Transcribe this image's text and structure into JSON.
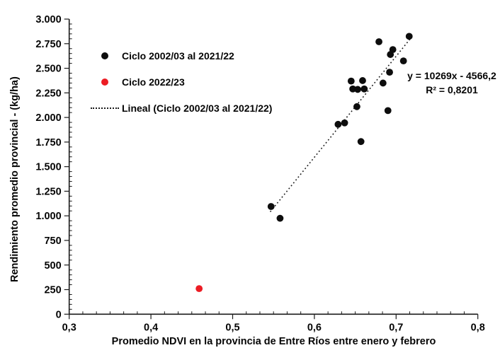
{
  "chart_data": {
    "type": "scatter",
    "title": "",
    "xlabel": "Promedio NDVI en la provincia de Entre Ríos entre enero y febrero",
    "ylabel": "Rendimiento promedio provincial - (kg/ha)",
    "xlim": [
      0.3,
      0.8
    ],
    "ylim": [
      0,
      3000
    ],
    "grid": false,
    "legend_position": "upper-left-inside",
    "x_major_step": 0.1,
    "x_minor_intervals_per_major": 6,
    "y_major_step": 250,
    "y_minor_step": 50,
    "x_tick_labels": [
      "0,3",
      "0,4",
      "0,5",
      "0,6",
      "0,7",
      "0,8"
    ],
    "y_tick_labels": [
      "0",
      "250",
      "500",
      "750",
      "1.000",
      "1.250",
      "1.500",
      "1.750",
      "2.000",
      "2.250",
      "2.500",
      "2.750",
      "3.000"
    ],
    "axis_color": "#1a1a1a",
    "series": [
      {
        "name": "Ciclo 2002/03 al 2021/22",
        "marker": "circle",
        "color": "#0d0d0d",
        "points": [
          [
            0.679,
            2770
          ],
          [
            0.716,
            2825
          ],
          [
            0.696,
            2690
          ],
          [
            0.693,
            2640
          ],
          [
            0.709,
            2575
          ],
          [
            0.692,
            2460
          ],
          [
            0.684,
            2350
          ],
          [
            0.645,
            2370
          ],
          [
            0.659,
            2375
          ],
          [
            0.647,
            2290
          ],
          [
            0.653,
            2285
          ],
          [
            0.661,
            2290
          ],
          [
            0.652,
            2110
          ],
          [
            0.69,
            2070
          ],
          [
            0.629,
            1930
          ],
          [
            0.637,
            1945
          ],
          [
            0.657,
            1755
          ],
          [
            0.547,
            1095
          ],
          [
            0.558,
            975
          ]
        ]
      },
      {
        "name": "Ciclo 2022/23",
        "marker": "circle",
        "color": "#ec1c24",
        "points": [
          [
            0.459,
            260
          ]
        ]
      }
    ],
    "trendline": {
      "name": "Lineal (Ciclo 2002/03 al 2021/22)",
      "style": "dotted",
      "color": "#1a1a1a",
      "slope": 10269,
      "intercept": -4566.2,
      "x_range": [
        0.546,
        0.718
      ],
      "equation": "y = 10269x - 4566,2",
      "r_squared": "R² = 0,8201"
    }
  }
}
